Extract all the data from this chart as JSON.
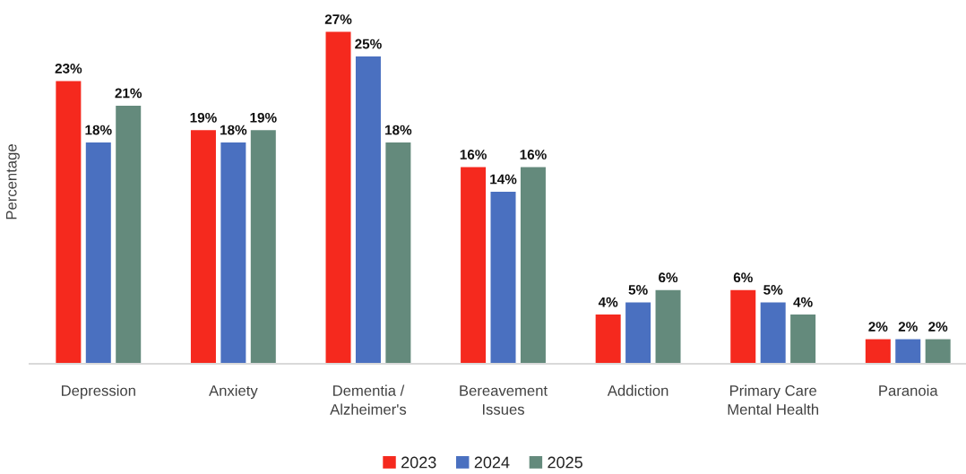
{
  "chart_data": {
    "type": "bar",
    "ylabel": "Percentage",
    "categories": [
      "Depression",
      "Anxiety",
      "Dementia /\nAlzheimer's",
      "Bereavement\nIssues",
      "Addiction",
      "Primary Care\nMental Health",
      "Paranoia"
    ],
    "series": [
      {
        "name": "2023",
        "color": "#f5291e",
        "values": [
          23,
          19,
          27,
          16,
          4,
          6,
          2
        ],
        "value_labels": [
          "23%",
          "19%",
          "27%",
          "16%",
          "4%",
          "6%",
          "2%"
        ]
      },
      {
        "name": "2024",
        "color": "#4a70c0",
        "values": [
          18,
          18,
          25,
          14,
          5,
          5,
          2
        ],
        "value_labels": [
          "18%",
          "18%",
          "25%",
          "14%",
          "5%",
          "5%",
          "2%"
        ]
      },
      {
        "name": "2025",
        "color": "#648a7c",
        "values": [
          21,
          19,
          18,
          16,
          6,
          4,
          2
        ],
        "value_labels": [
          "21%",
          "19%",
          "18%",
          "16%",
          "6%",
          "4%",
          "2%"
        ]
      }
    ],
    "legend": "bottom",
    "tick_labels": "x"
  }
}
